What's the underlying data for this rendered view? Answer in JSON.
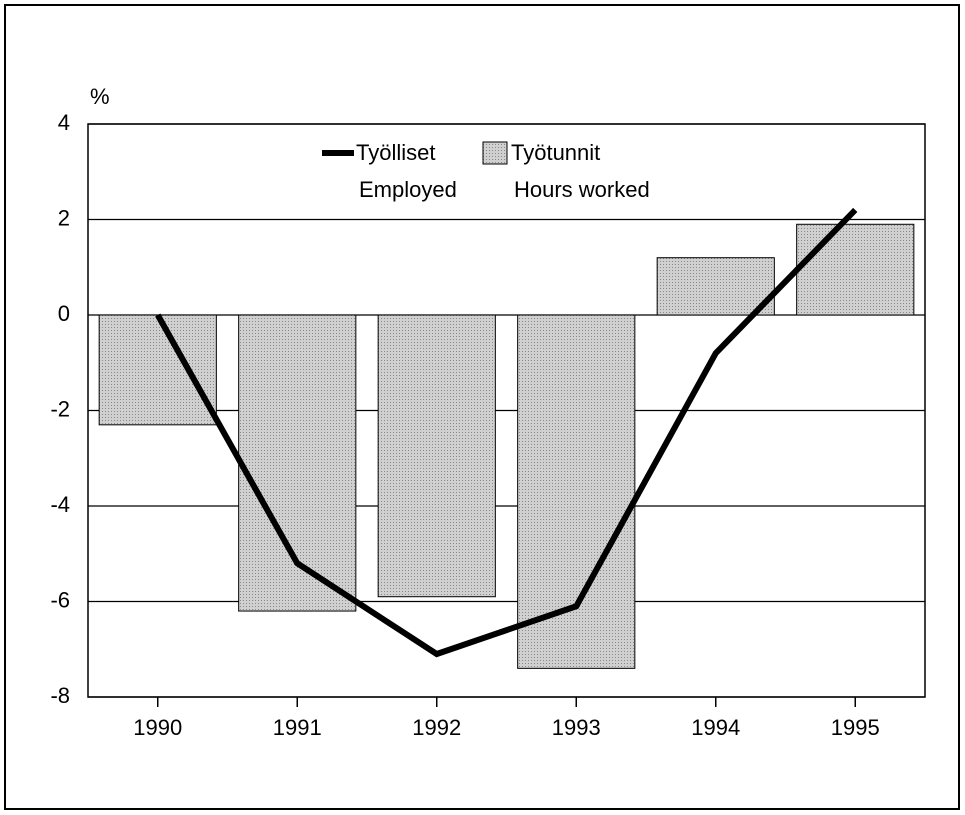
{
  "chart_data": {
    "type": "bar",
    "y_label": "%",
    "categories": [
      "1990",
      "1991",
      "1992",
      "1993",
      "1994",
      "1995"
    ],
    "series": [
      {
        "name": "Työlliset",
        "name_en": "Employed",
        "type": "line",
        "color": "#000000",
        "values": [
          0,
          -5.2,
          -7.1,
          -6.1,
          -0.8,
          2.2
        ]
      },
      {
        "name": "Työtunnit",
        "name_en": "Hours worked",
        "type": "bar",
        "color": "#c4c4c4",
        "values": [
          -2.3,
          -6.2,
          -5.9,
          -7.4,
          1.2,
          1.9
        ]
      }
    ],
    "ylim": [
      -8,
      4
    ],
    "yticks": [
      -8,
      -6,
      -4,
      -2,
      0,
      2,
      4
    ],
    "grid": true
  }
}
